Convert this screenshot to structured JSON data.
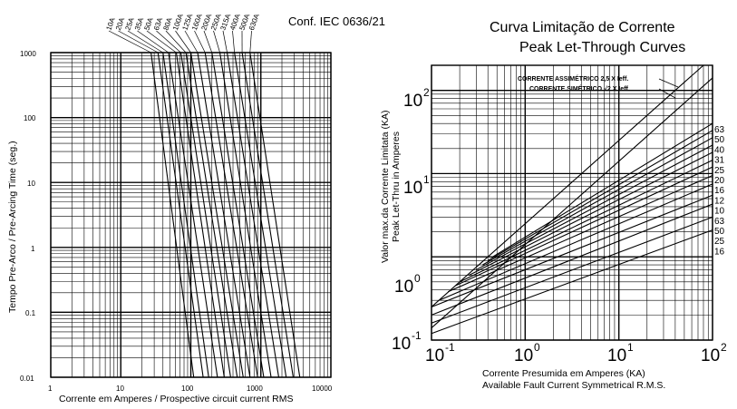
{
  "left": {
    "standard": "Conf. IEC 0636/21",
    "xlabel": "Corrente em Amperes / Prospective circuit current RMS",
    "ylabel": "Tempo Pre-Arco / Pre-Arcing Time (seg.)",
    "x_ticks": [
      "1",
      "10",
      "100",
      "1000",
      "10000"
    ],
    "y_ticks": [
      "1000",
      "100",
      "10",
      "1",
      "0.1",
      "0.01"
    ],
    "ratings": [
      "10A",
      "20A",
      "25A",
      "35A",
      "50A",
      "63A",
      "80A",
      "100A",
      "125A",
      "160A",
      "200A",
      "250A",
      "315A",
      "400A",
      "500A",
      "630A"
    ]
  },
  "right": {
    "title_pt": "Curva Limitação de Corrente",
    "title_en": "Peak Let-Through Curves",
    "ylabel_pt": "Valor max.da Corrente Limitata (KA)",
    "ylabel_en": "Peak Let-Thru in Amperes",
    "xlabel_pt": "Corrente Presumida em Amperes (KA)",
    "xlabel_en": "Available Fault Current Symmetrical R.M.S.",
    "x_ticks": [
      {
        "base": "10",
        "exp": "-1"
      },
      {
        "base": "10",
        "exp": "0"
      },
      {
        "base": "10",
        "exp": "1"
      },
      {
        "base": "10",
        "exp": "2"
      }
    ],
    "y_ticks": [
      {
        "base": "10",
        "exp": "-1"
      },
      {
        "base": "10",
        "exp": "0"
      },
      {
        "base": "10",
        "exp": "1"
      },
      {
        "base": "10",
        "exp": "2"
      }
    ],
    "line_asym": "CORRENTE ASSIMÉTRICO  2,5 X Ieff.",
    "line_sym": "CORRENTE SIMÉTRICO  √2 X Ieff.",
    "curve_labels": [
      "63",
      "50",
      "40",
      "31",
      "25",
      "20",
      "16",
      "12",
      "10",
      "63",
      "50",
      "25",
      "16"
    ]
  },
  "chart_data": [
    {
      "type": "line",
      "title": "",
      "xlabel": "Corrente em Amperes / Prospective circuit current RMS",
      "ylabel": "Tempo Pre-Arco / Pre-Arcing Time (seg.)",
      "x_scale": "log",
      "y_scale": "log",
      "xlim": [
        1,
        10000
      ],
      "ylim": [
        0.01,
        1000
      ],
      "grid": true,
      "series": [
        {
          "name": "10A",
          "points": [
            [
              27,
              1000
            ],
            [
              110,
              0.01
            ]
          ]
        },
        {
          "name": "20A",
          "points": [
            [
              34,
              1000
            ],
            [
              150,
              0.01
            ]
          ]
        },
        {
          "name": "25A",
          "points": [
            [
              40,
              1000
            ],
            [
              180,
              0.01
            ]
          ]
        },
        {
          "name": "35A",
          "points": [
            [
              48,
              1000
            ],
            [
              240,
              0.01
            ]
          ]
        },
        {
          "name": "50A",
          "points": [
            [
              62,
              1000
            ],
            [
              300,
              0.01
            ]
          ]
        },
        {
          "name": "63A",
          "points": [
            [
              72,
              1000
            ],
            [
              370,
              0.01
            ]
          ]
        },
        {
          "name": "80A",
          "points": [
            [
              85,
              1000
            ],
            [
              460,
              0.01
            ]
          ]
        },
        {
          "name": "100A",
          "points": [
            [
              100,
              1000
            ],
            [
              560,
              0.01
            ]
          ]
        },
        {
          "name": "125A",
          "points": [
            [
              125,
              1000
            ],
            [
              700,
              0.01
            ]
          ]
        },
        {
          "name": "160A",
          "points": [
            [
              160,
              1000
            ],
            [
              900,
              0.01
            ]
          ]
        },
        {
          "name": "200A",
          "points": [
            [
              200,
              1000
            ],
            [
              1100,
              0.01
            ]
          ]
        },
        {
          "name": "250A",
          "points": [
            [
              260,
              1000
            ],
            [
              1400,
              0.01
            ]
          ]
        },
        {
          "name": "315A",
          "points": [
            [
              330,
              1000
            ],
            [
              1800,
              0.01
            ]
          ]
        },
        {
          "name": "400A",
          "points": [
            [
              420,
              1000
            ],
            [
              2300,
              0.01
            ]
          ]
        },
        {
          "name": "500A",
          "points": [
            [
              540,
              1000
            ],
            [
              2900,
              0.01
            ]
          ]
        },
        {
          "name": "630A",
          "points": [
            [
              700,
              1000
            ],
            [
              3600,
              0.01
            ]
          ]
        }
      ]
    },
    {
      "type": "line",
      "title": "Curva Limitação de Corrente / Peak Let-Through Curves",
      "xlabel": "Corrente Presumida em Amperes (KA)",
      "ylabel": "Valor max.da Corrente Limitata (KA)",
      "x_scale": "log",
      "y_scale": "log",
      "xlim": [
        0.1,
        100
      ],
      "ylim": [
        0.1,
        200
      ],
      "grid": true,
      "reference_lines": [
        {
          "name": "CORRENTE ASSIMÉTRICO 2,5 X Ieff.",
          "points": [
            [
              0.1,
              0.25
            ],
            [
              100,
              250
            ]
          ]
        },
        {
          "name": "CORRENTE SIMÉTRICO √2 X Ieff.",
          "points": [
            [
              0.1,
              0.14
            ],
            [
              100,
              141
            ]
          ]
        }
      ],
      "series": [
        {
          "name": "63",
          "points": [
            [
              0.45,
              1.0
            ],
            [
              100,
              40
            ]
          ]
        },
        {
          "name": "50",
          "points": [
            [
              0.4,
              0.9
            ],
            [
              100,
              33
            ]
          ]
        },
        {
          "name": "40",
          "points": [
            [
              0.35,
              0.8
            ],
            [
              100,
              27
            ]
          ]
        },
        {
          "name": "31",
          "points": [
            [
              0.3,
              0.7
            ],
            [
              100,
              22
            ]
          ]
        },
        {
          "name": "25",
          "points": [
            [
              0.25,
              0.6
            ],
            [
              100,
              18
            ]
          ]
        },
        {
          "name": "20",
          "points": [
            [
              0.2,
              0.5
            ],
            [
              100,
              14.5
            ]
          ]
        },
        {
          "name": "16",
          "points": [
            [
              0.18,
              0.45
            ],
            [
              100,
              12
            ]
          ]
        },
        {
          "name": "12",
          "points": [
            [
              0.15,
              0.38
            ],
            [
              100,
              9.5
            ]
          ]
        },
        {
          "name": "10",
          "points": [
            [
              0.12,
              0.3
            ],
            [
              100,
              7.5
            ]
          ]
        },
        {
          "name": "63",
          "points": [
            [
              0.1,
              0.25
            ],
            [
              100,
              5.5
            ]
          ]
        },
        {
          "name": "50",
          "points": [
            [
              0.1,
              0.2
            ],
            [
              100,
              4.3
            ]
          ]
        },
        {
          "name": "25",
          "points": [
            [
              0.1,
              0.16
            ],
            [
              100,
              3.0
            ]
          ]
        },
        {
          "name": "16",
          "points": [
            [
              0.1,
              0.12
            ],
            [
              100,
              2.1
            ]
          ]
        }
      ]
    }
  ]
}
